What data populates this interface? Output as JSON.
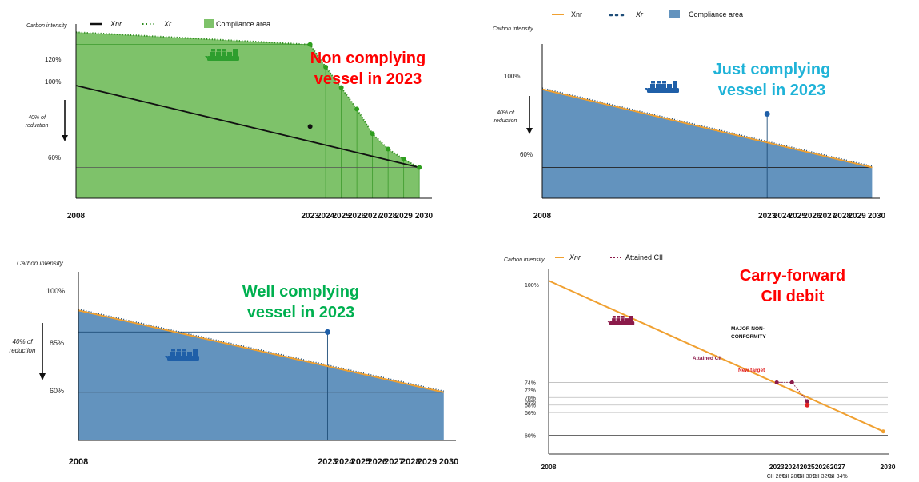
{
  "chart_data": [
    {
      "type": "area",
      "title": "Non complying vessel in 2023",
      "ylabel": "Carbon intensity",
      "arrow_label_line1": "40% of",
      "arrow_label_line2": "reduction",
      "legend": {
        "xnr": "Xnr",
        "xr": "Xr",
        "area": "Compliance area"
      },
      "ylim": [
        45,
        130
      ],
      "y_ticks": [
        {
          "label": "120%",
          "value": 120
        },
        {
          "label": "100%",
          "value": 100
        },
        {
          "label": "60%",
          "value": 60
        }
      ],
      "x_start": 2008,
      "x_end": 2030.3,
      "x_ticks": [
        {
          "label": "2008",
          "x": 2008
        },
        {
          "label": "2023",
          "x": 2023
        },
        {
          "label": "2024",
          "x": 2024
        },
        {
          "label": "2025",
          "x": 2025
        },
        {
          "label": "2026",
          "x": 2026
        },
        {
          "label": "2027",
          "x": 2027
        },
        {
          "label": "2028",
          "x": 2028
        },
        {
          "label": "2029",
          "x": 2029
        },
        {
          "label": "2030",
          "x": 2030.3
        }
      ],
      "xnr": {
        "x": [
          2008,
          2030
        ],
        "y": [
          100,
          60
        ]
      },
      "xr": {
        "x": [
          2008,
          2023,
          2024,
          2025,
          2026,
          2027,
          2028,
          2029,
          2030
        ],
        "y": [
          126,
          120,
          109,
          99,
          88.5,
          76.5,
          69,
          64,
          60
        ]
      },
      "attained": {
        "x": 2023,
        "y": 80
      },
      "colors": {
        "area": "#7ec26a",
        "xr": "#2e8b1e",
        "xnr": "#111111",
        "title": "#ff0000"
      }
    },
    {
      "type": "area",
      "title": "Just complying vessel in 2023",
      "ylabel": "Carbon intensity",
      "arrow_label_line1": "40% of",
      "arrow_label_line2": "reduction",
      "legend": {
        "xnr": "Xnr",
        "xr": "Xr",
        "area": "Compliance area"
      },
      "ylim": [
        45,
        120
      ],
      "y_ticks": [
        {
          "label": "100%",
          "value": 100
        },
        {
          "label": "60%",
          "value": 60
        }
      ],
      "x_start": 2008,
      "x_end": 2030.3,
      "x_ticks": [
        {
          "label": "2008",
          "x": 2008
        },
        {
          "label": "2023",
          "x": 2023
        },
        {
          "label": "2024",
          "x": 2024
        },
        {
          "label": "2025",
          "x": 2025
        },
        {
          "label": "2026",
          "x": 2026
        },
        {
          "label": "2027",
          "x": 2027
        },
        {
          "label": "2028",
          "x": 2028
        },
        {
          "label": "2029",
          "x": 2029
        },
        {
          "label": "2030",
          "x": 2030.3
        }
      ],
      "xnr": {
        "x": [
          2008,
          2030
        ],
        "y": [
          98,
          60
        ]
      },
      "attained": {
        "x": 2023,
        "y": 86
      },
      "colors": {
        "area": "#6393be",
        "xr": "#1f4e79",
        "xnr": "#f0a030",
        "title": "#1fb3d8"
      }
    },
    {
      "type": "area",
      "title": "Well complying vessel in 2023",
      "ylabel": "Carbon intensity",
      "arrow_label_line1": "40% of",
      "arrow_label_line2": "reduction",
      "ylim": [
        40,
        110
      ],
      "y_ticks": [
        {
          "label": "100%",
          "value": 100
        },
        {
          "label": "85%",
          "value": 85
        },
        {
          "label": "60%",
          "value": 60
        }
      ],
      "x_start": 2008,
      "x_end": 2030.3,
      "x_ticks": [
        {
          "label": "2008",
          "x": 2008
        },
        {
          "label": "2023",
          "x": 2023
        },
        {
          "label": "2024",
          "x": 2024
        },
        {
          "label": "2025",
          "x": 2025
        },
        {
          "label": "2026",
          "x": 2026
        },
        {
          "label": "2027",
          "x": 2027
        },
        {
          "label": "2028",
          "x": 2028
        },
        {
          "label": "2029",
          "x": 2029
        },
        {
          "label": "2030",
          "x": 2030.3
        }
      ],
      "xnr": {
        "x": [
          2008,
          2030
        ],
        "y": [
          94,
          60
        ]
      },
      "attained": {
        "x": 2023,
        "y": 85
      },
      "colors": {
        "area": "#6393be",
        "xr": "#1f4e79",
        "xnr": "#f0a030",
        "title": "#00b050"
      }
    },
    {
      "type": "line",
      "title_line1": "Carry-forward",
      "title_line2": "CII debit",
      "ylabel": "Carbon intensity",
      "legend": {
        "xnr": "Xnr",
        "attained": "Attained CII"
      },
      "ylim": [
        55,
        104
      ],
      "y_ticks": [
        {
          "label": "100%",
          "value": 100
        },
        {
          "label": "74%",
          "value": 74
        },
        {
          "label": "72%",
          "value": 72
        },
        {
          "label": "70%",
          "value": 70
        },
        {
          "label": "69%",
          "value": 69
        },
        {
          "label": "68%",
          "value": 68
        },
        {
          "label": "66%",
          "value": 66
        },
        {
          "label": "60%",
          "value": 60
        }
      ],
      "gridlines": [
        74,
        70,
        68,
        66,
        60
      ],
      "x_start": 2008,
      "x_end": 2030.3,
      "x_ticks": [
        {
          "label": "2008",
          "x": 2008,
          "sub": ""
        },
        {
          "label": "2023",
          "x": 2023,
          "sub": "CII 26%"
        },
        {
          "label": "2024",
          "x": 2024,
          "sub": "CII 28%"
        },
        {
          "label": "2025",
          "x": 2025,
          "sub": "CII 30%"
        },
        {
          "label": "2026",
          "x": 2026,
          "sub": "CII 32%"
        },
        {
          "label": "2027",
          "x": 2027,
          "sub": "CII 34%"
        },
        {
          "label": "2030",
          "x": 2030.3,
          "sub": ""
        }
      ],
      "xnr": {
        "x": [
          2008,
          2030
        ],
        "y": [
          101,
          61
        ]
      },
      "attained_path": {
        "x": [
          2023,
          2024,
          2025
        ],
        "y": [
          74,
          74,
          69
        ]
      },
      "new_target": {
        "x": 2025,
        "y": 68
      },
      "annotations": {
        "major_line1": "MAJOR NON-",
        "major_line2": "CONFORMITY",
        "attained": "Attained CII",
        "new_target": "New target"
      },
      "colors": {
        "xnr": "#f0a030",
        "attained": "#8b1a4a",
        "target": "#e02020",
        "title": "#ff0000"
      }
    }
  ]
}
